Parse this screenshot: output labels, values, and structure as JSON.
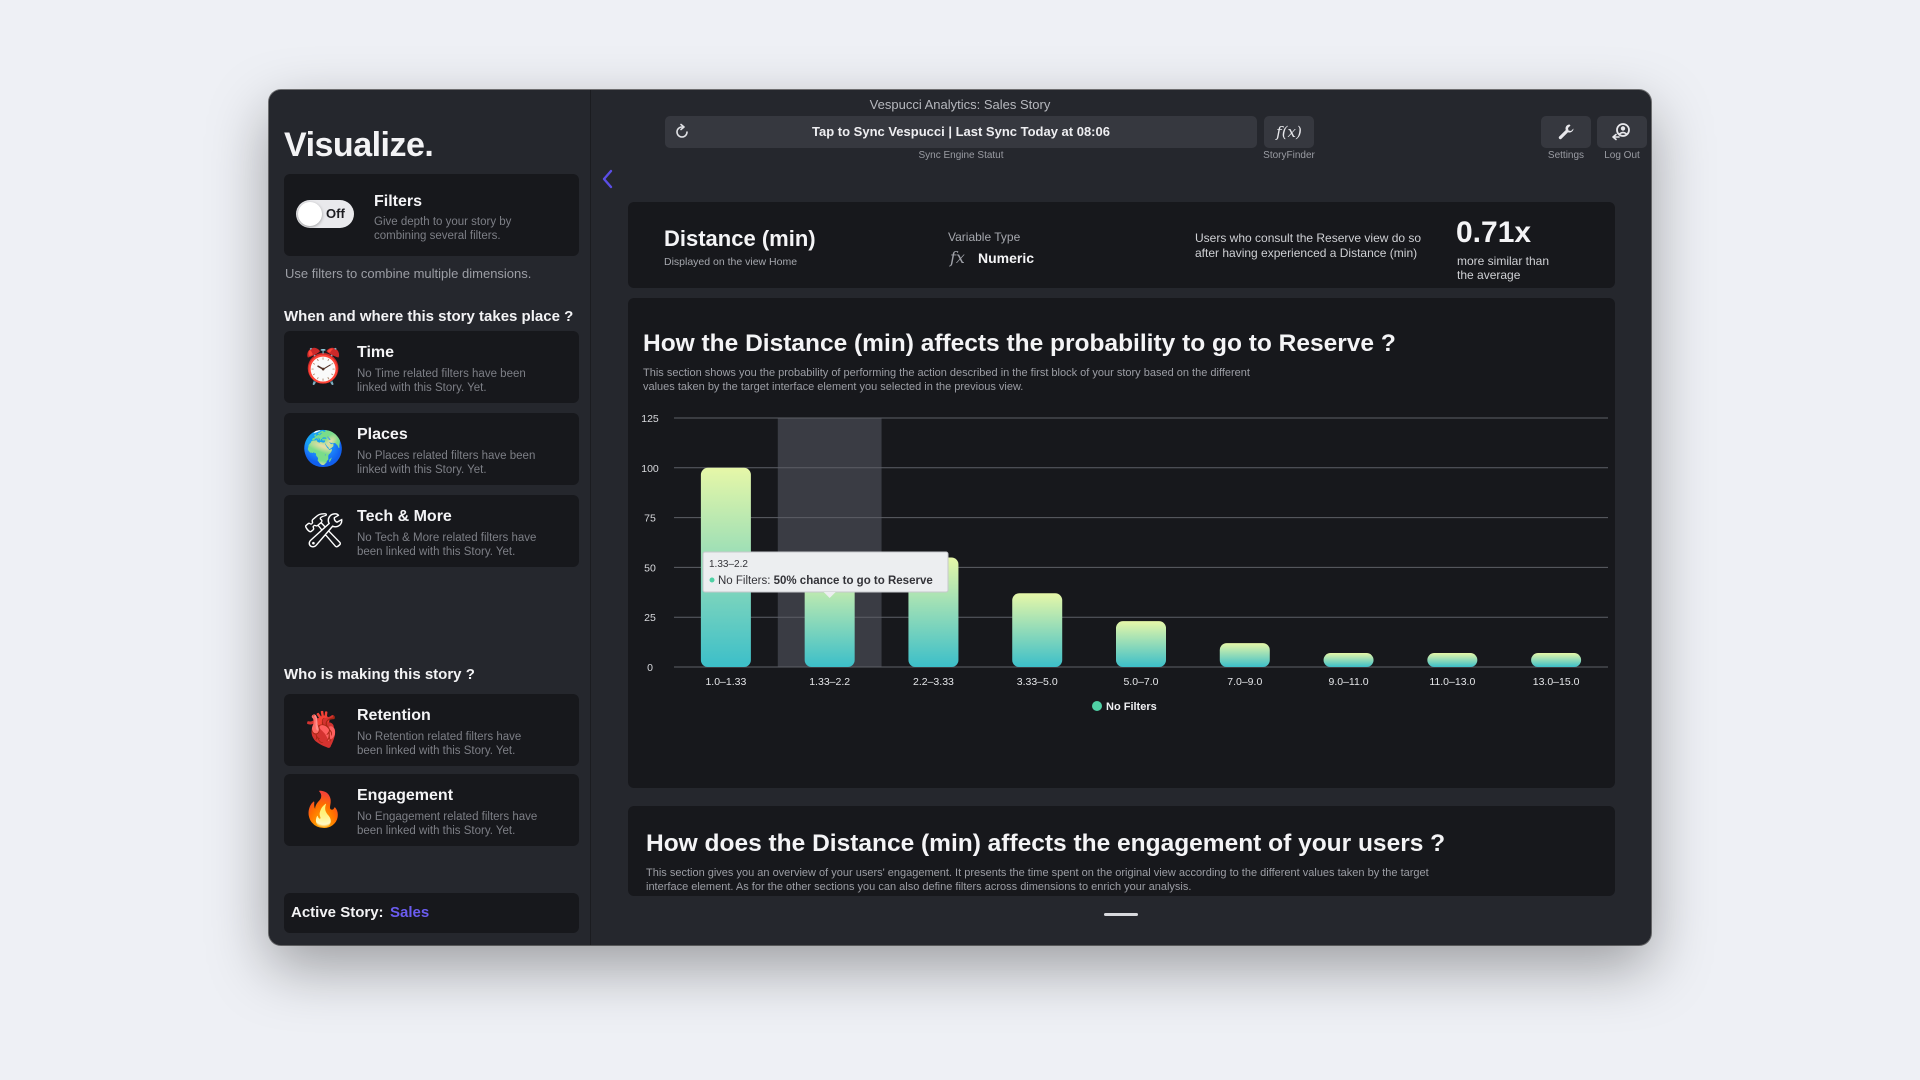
{
  "window": {
    "title": "Vespucci Analytics: Sales Story"
  },
  "sidebar": {
    "app_title": "Visualize.",
    "filters": {
      "toggle_label": "Off",
      "title": "Filters",
      "description": "Give depth to your story by combining several filters.",
      "hint": "Use filters to combine multiple dimensions."
    },
    "when_where_heading": "When and where this story takes place ?",
    "when_where_items": [
      {
        "title": "Time",
        "description": "No Time related filters have been linked with this Story. Yet.",
        "emoji": "⏰",
        "icon": "alarm-clock-icon"
      },
      {
        "title": "Places",
        "description": "No Places related filters have been linked with this Story. Yet.",
        "emoji": "🌍",
        "icon": "globe-icon"
      },
      {
        "title": "Tech & More",
        "description": "No Tech & More related filters have been linked with this Story. Yet.",
        "emoji": "🛠",
        "icon": "tools-icon"
      }
    ],
    "who_heading": "Who is making this story ?",
    "who_items": [
      {
        "title": "Retention",
        "description": "No Retention related filters have been linked with this Story. Yet.",
        "emoji": "🫀",
        "icon": "anatomical-heart-icon"
      },
      {
        "title": "Engagement",
        "description": "No Engagement related filters have been linked with this Story. Yet.",
        "emoji": "🔥",
        "icon": "fire-icon"
      }
    ],
    "active_story": {
      "label": "Active Story:",
      "value": "Sales"
    }
  },
  "toolbar": {
    "sync_text": "Tap to Sync Vespucci | Last Sync Today at 08:06",
    "sync_caption": "Sync Engine Statut",
    "fx_label": "f(x)",
    "fx_caption": "StoryFinder",
    "settings_caption": "Settings",
    "logout_caption": "Log Out"
  },
  "variable": {
    "name": "Distance (min)",
    "subtitle": "Displayed on the view Home",
    "type_label": "Variable Type",
    "type_icon": "fx",
    "type_value": "Numeric",
    "insight": "Users who consult the Reserve view do so after having experienced a Distance (min)",
    "ratio": "0.71x",
    "ratio_caption": "more similar than the average"
  },
  "probability_section": {
    "title": "How the Distance (min) affects the probability to go to Reserve ?",
    "description": "This section shows you the probability of performing the action described in the first block of your story based on the different values taken by the target interface element you selected in the previous view."
  },
  "chart_data": {
    "type": "bar",
    "categories": [
      "1.0–1.33",
      "1.33–2.2",
      "2.2–3.33",
      "3.33–5.0",
      "5.0–7.0",
      "7.0–9.0",
      "9.0–11.0",
      "11.0–13.0",
      "13.0–15.0"
    ],
    "series": [
      {
        "name": "No Filters",
        "values": [
          100,
          50,
          55,
          37,
          23,
          12,
          7,
          7,
          7
        ]
      }
    ],
    "ylim": [
      0,
      125
    ],
    "yticks": [
      0,
      25,
      50,
      75,
      100,
      125
    ],
    "grid": true,
    "legend": "bottom",
    "highlighted_index": 1,
    "tooltip": {
      "category": "1.33–2.2",
      "series": "No Filters:",
      "value_text": "50% chance to go to Reserve"
    },
    "colors": {
      "gradient_top": "#e6f7a8",
      "gradient_bottom": "#3cbfc9",
      "legend_dot": "#4fd1a5",
      "highlight": "#3a3c44"
    }
  },
  "engagement_section": {
    "title": "How does the Distance (min) affects the engagement of your users ?",
    "description": "This section gives you an overview of your users' engagement. It presents the time spent on the original view according to the different values taken by the target interface element. As for the other sections you can also define filters across dimensions to enrich your analysis."
  }
}
